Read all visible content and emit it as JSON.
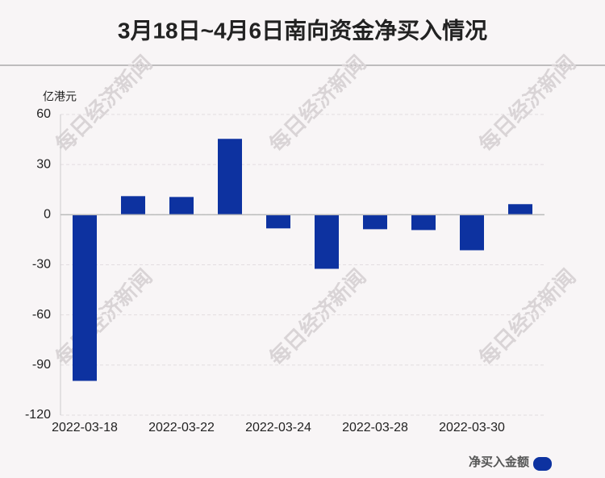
{
  "chart_data": {
    "type": "bar",
    "title": "3月18日~4月6日南向资金净买入情况",
    "y_axis_label": "亿港元",
    "watermark": "每日经济新闻",
    "categories": [
      "2022-03-18",
      null,
      "2022-03-22",
      null,
      "2022-03-24",
      null,
      "2022-03-28",
      null,
      "2022-03-30",
      null
    ],
    "series": [
      {
        "name": "净买入金额",
        "color": "#0d32a0",
        "values": [
          -99.5,
          11.1,
          10.6,
          45.4,
          -8.2,
          -32.4,
          -8.7,
          -9.2,
          -21.3,
          6.3
        ]
      }
    ],
    "ylim": [
      -120,
      60
    ],
    "yticks": [
      -120,
      -90,
      -60,
      -30,
      0,
      30,
      60
    ],
    "grid": true
  }
}
